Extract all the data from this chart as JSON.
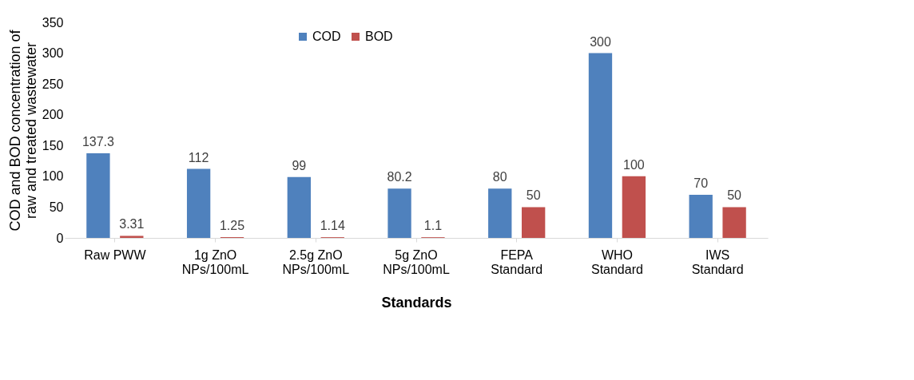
{
  "chart_data": {
    "type": "bar",
    "xlabel": "Standards",
    "ylabel": "COD and BOD concentration of raw and treated wastewater",
    "categories": [
      "Raw PWW",
      "1g ZnO\nNPs/100mL",
      "2.5g ZnO\nNPs/100mL",
      "5g ZnO\nNPs/100mL",
      "FEPA\nStandard",
      "WHO\nStandard",
      "IWS\nStandard"
    ],
    "series": [
      {
        "name": "COD",
        "color": "#4f81bd",
        "values": [
          137.3,
          112,
          99,
          80.2,
          80,
          300,
          70
        ]
      },
      {
        "name": "BOD",
        "color": "#c0504d",
        "values": [
          3.31,
          1.25,
          1.14,
          1.1,
          50,
          100,
          50
        ]
      }
    ],
    "ylim": [
      0,
      350
    ],
    "yticks": [
      0,
      50,
      100,
      150,
      200,
      250,
      300,
      350
    ],
    "grid": false,
    "legend": "top",
    "data_labels": true
  }
}
